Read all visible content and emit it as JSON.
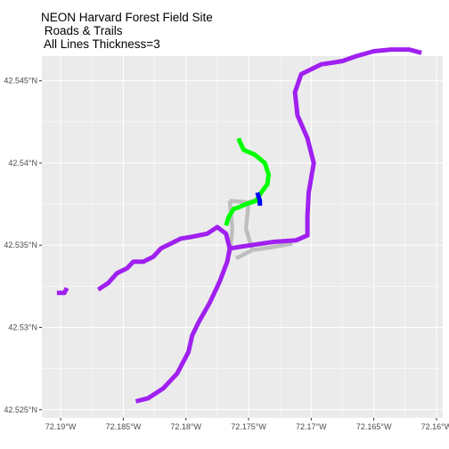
{
  "title_lines": [
    "NEON Harvard Forest Field Site",
    " Roads & Trails",
    " All Lines Thickness=3"
  ],
  "chart_data": {
    "type": "map",
    "title": "NEON Harvard Forest Field Site\n Roads & Trails\n All Lines Thickness=3",
    "xlabel": "",
    "ylabel": "",
    "xlim": [
      -72.1915,
      -72.1595
    ],
    "ylim": [
      42.5245,
      42.5465
    ],
    "grid": true,
    "background": "#ebebeb",
    "x_ticks": [
      {
        "value": -72.19,
        "label": "72.19°W"
      },
      {
        "value": -72.185,
        "label": "72.185°W"
      },
      {
        "value": -72.18,
        "label": "72.18°W"
      },
      {
        "value": -72.175,
        "label": "72.175°W"
      },
      {
        "value": -72.17,
        "label": "72.17°W"
      },
      {
        "value": -72.165,
        "label": "72.165°W"
      },
      {
        "value": -72.16,
        "label": "72.16°W"
      }
    ],
    "y_ticks": [
      {
        "value": 42.525,
        "label": "42.525°N"
      },
      {
        "value": 42.53,
        "label": "42.53°N"
      },
      {
        "value": 42.535,
        "label": "42.535°N"
      },
      {
        "value": 42.54,
        "label": "42.54°N"
      },
      {
        "value": 42.545,
        "label": "42.545°N"
      }
    ],
    "series": [
      {
        "color": "#bebebe",
        "paths": [
          [
            [
              -72.1765,
              42.5377
            ],
            [
              -72.175,
              42.5376
            ],
            [
              -72.1752,
              42.536
            ],
            [
              -72.1747,
              42.5347
            ]
          ],
          [
            [
              -72.1765,
              42.5377
            ],
            [
              -72.1763,
              42.536
            ],
            [
              -72.1765,
              42.5345
            ]
          ],
          [
            [
              -72.1747,
              42.5347
            ],
            [
              -72.176,
              42.5342
            ]
          ],
          [
            [
              -72.1747,
              42.5347
            ],
            [
              -72.173,
              42.5349
            ],
            [
              -72.1715,
              42.5351
            ]
          ],
          [
            [
              -72.175,
              42.5376
            ],
            [
              -72.1743,
              42.5378
            ]
          ]
        ]
      },
      {
        "color": "#a020f0",
        "paths": [
          [
            [
              -72.184,
              42.5255
            ],
            [
              -72.183,
              42.5257
            ],
            [
              -72.1818,
              42.5263
            ],
            [
              -72.1807,
              42.5272
            ],
            [
              -72.1798,
              42.5285
            ],
            [
              -72.1795,
              42.5295
            ],
            [
              -72.179,
              42.5303
            ],
            [
              -72.1781,
              42.5315
            ],
            [
              -72.1773,
              42.5328
            ],
            [
              -72.1767,
              42.534
            ],
            [
              -72.1765,
              42.5348
            ],
            [
              -72.1768,
              42.5357
            ],
            [
              -72.1775,
              42.5361
            ],
            [
              -72.1783,
              42.5357
            ],
            [
              -72.1796,
              42.5355
            ],
            [
              -72.1804,
              42.5354
            ],
            [
              -72.1812,
              42.5351
            ],
            [
              -72.182,
              42.5348
            ],
            [
              -72.1826,
              42.5343
            ],
            [
              -72.1834,
              42.534
            ],
            [
              -72.1842,
              42.534
            ],
            [
              -72.1847,
              42.5336
            ],
            [
              -72.1855,
              42.5333
            ],
            [
              -72.1862,
              42.5327
            ],
            [
              -72.187,
              42.5323
            ]
          ],
          [
            [
              -72.1765,
              42.5348
            ],
            [
              -72.1748,
              42.535
            ],
            [
              -72.173,
              42.5352
            ],
            [
              -72.1712,
              42.5353
            ],
            [
              -72.1703,
              42.5356
            ],
            [
              -72.1703,
              42.5368
            ],
            [
              -72.1702,
              42.5382
            ],
            [
              -72.1698,
              42.54
            ],
            [
              -72.1703,
              42.5415
            ],
            [
              -72.1711,
              42.5429
            ],
            [
              -72.1713,
              42.5443
            ],
            [
              -72.1708,
              42.5454
            ],
            [
              -72.17,
              42.5457
            ],
            [
              -72.1692,
              42.546
            ],
            [
              -72.1683,
              42.5461
            ],
            [
              -72.1675,
              42.5462
            ],
            [
              -72.1664,
              42.5465
            ],
            [
              -72.165,
              42.5468
            ],
            [
              -72.1636,
              42.5469
            ],
            [
              -72.1622,
              42.5469
            ],
            [
              -72.1612,
              42.5467
            ]
          ],
          [
            [
              -72.1903,
              42.5321
            ],
            [
              -72.1897,
              42.5321
            ],
            [
              -72.1895,
              42.5324
            ]
          ]
        ]
      },
      {
        "color": "#00ff00",
        "paths": [
          [
            [
              -72.1768,
              42.5362
            ],
            [
              -72.1766,
              42.5367
            ],
            [
              -72.1762,
              42.5372
            ],
            [
              -72.1758,
              42.5373
            ],
            [
              -72.1752,
              42.5375
            ],
            [
              -72.1744,
              42.5377
            ],
            [
              -72.174,
              42.5382
            ],
            [
              -72.1735,
              42.5387
            ],
            [
              -72.1734,
              42.5393
            ],
            [
              -72.1737,
              42.54
            ],
            [
              -72.1745,
              42.5405
            ],
            [
              -72.1754,
              42.5408
            ],
            [
              -72.1757,
              42.5413
            ],
            [
              -72.1758,
              42.5415
            ]
          ]
        ]
      },
      {
        "color": "#0000ff",
        "paths": [
          [
            [
              -72.1743,
              42.5382
            ],
            [
              -72.1741,
              42.5377
            ],
            [
              -72.1741,
              42.5374
            ]
          ]
        ]
      }
    ]
  }
}
